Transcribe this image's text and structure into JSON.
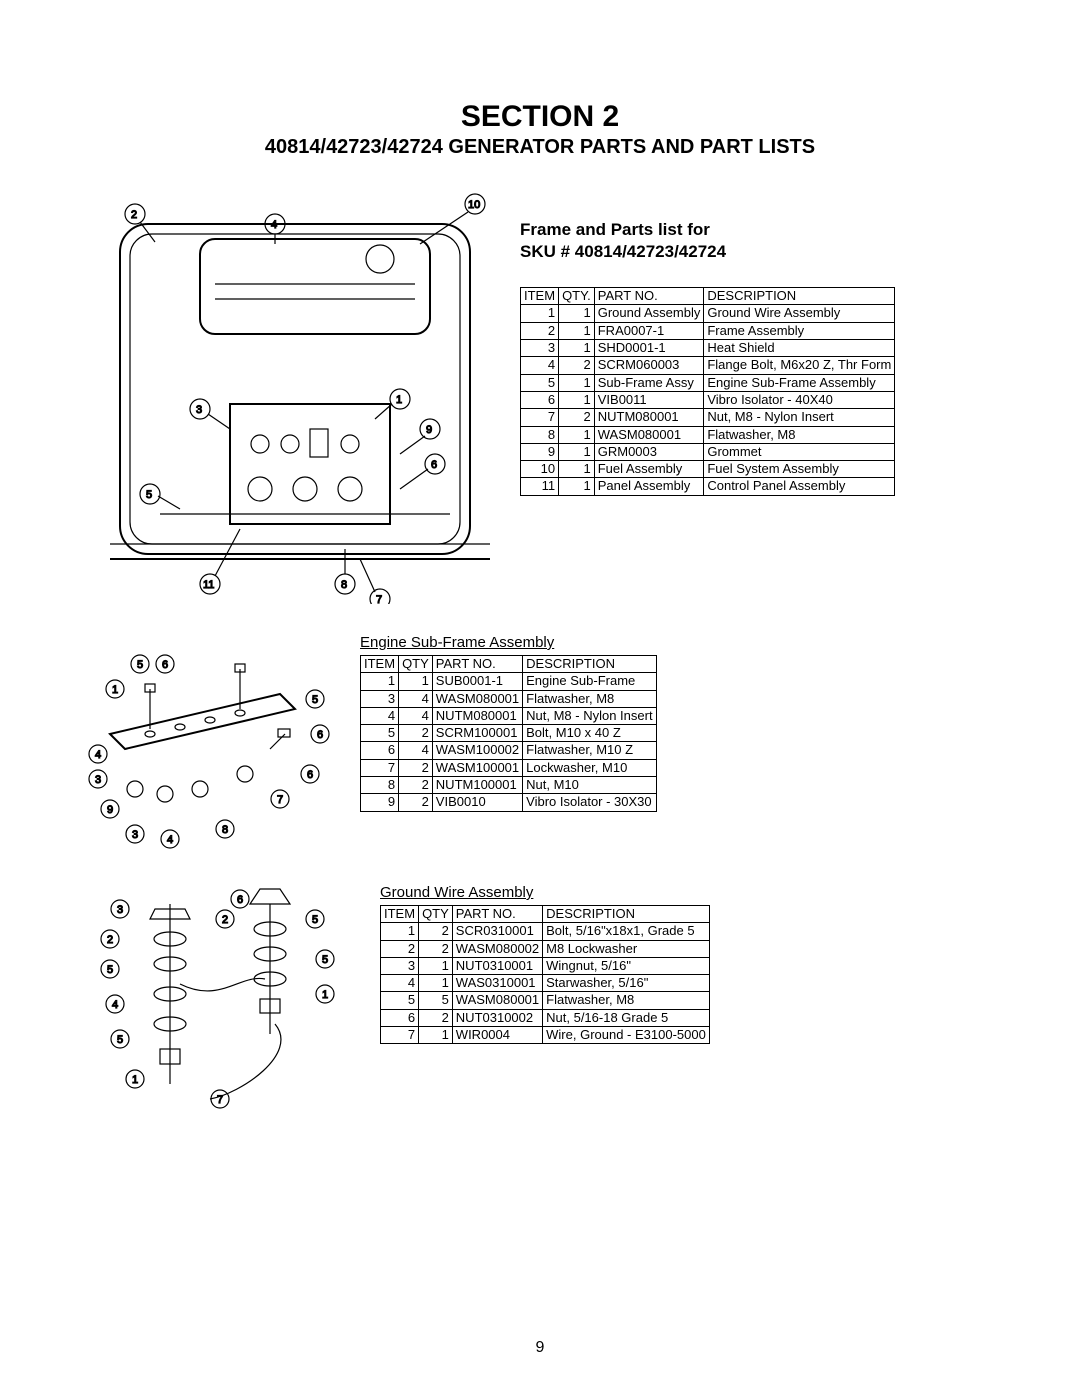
{
  "section_title": "SECTION 2",
  "subtitle": "40814/42723/42724 GENERATOR PARTS AND PART LISTS",
  "frame_heading_l1": "Frame and Parts list for",
  "frame_heading_l2": "SKU # 40814/42723/42724",
  "page_number": "9",
  "table1": {
    "cols": [
      "ITEM",
      "QTY.",
      "PART NO.",
      "DESCRIPTION"
    ],
    "rows": [
      [
        "1",
        "1",
        "Ground Assembly",
        "Ground Wire Assembly"
      ],
      [
        "2",
        "1",
        "FRA0007-1",
        "Frame Assembly"
      ],
      [
        "3",
        "1",
        "SHD0001-1",
        "Heat Shield"
      ],
      [
        "4",
        "2",
        "SCRM060003",
        "Flange Bolt, M6x20  Z, Thr Form"
      ],
      [
        "5",
        "1",
        "Sub-Frame Assy",
        "Engine Sub-Frame Assembly"
      ],
      [
        "6",
        "1",
        "VIB0011",
        "Vibro Isolator - 40X40"
      ],
      [
        "7",
        "2",
        "NUTM080001",
        "Nut, M8 - Nylon Insert"
      ],
      [
        "8",
        "1",
        "WASM080001",
        "Flatwasher, M8"
      ],
      [
        "9",
        "1",
        "GRM0003",
        "Grommet"
      ],
      [
        "10",
        "1",
        "Fuel Assembly",
        "Fuel System Assembly"
      ],
      [
        "11",
        "1",
        "Panel Assembly",
        "Control Panel Assembly"
      ]
    ]
  },
  "table2": {
    "title": "Engine Sub-Frame Assembly",
    "cols": [
      "ITEM",
      "QTY",
      "PART NO.",
      "DESCRIPTION"
    ],
    "rows": [
      [
        "1",
        "1",
        "SUB0001-1",
        "Engine Sub-Frame"
      ],
      [
        "3",
        "4",
        "WASM080001",
        "Flatwasher, M8"
      ],
      [
        "4",
        "4",
        "NUTM080001",
        "Nut, M8 - Nylon Insert"
      ],
      [
        "5",
        "2",
        "SCRM100001",
        "Bolt, M10 x 40 Z"
      ],
      [
        "6",
        "4",
        "WASM100002",
        "Flatwasher, M10 Z"
      ],
      [
        "7",
        "2",
        "WASM100001",
        "Lockwasher, M10"
      ],
      [
        "8",
        "2",
        "NUTM100001",
        "Nut, M10"
      ],
      [
        "9",
        "2",
        "VIB0010",
        "Vibro Isolator - 30X30"
      ]
    ]
  },
  "table3": {
    "title": "Ground Wire Assembly",
    "cols": [
      "ITEM",
      "QTY",
      "PART NO.",
      "DESCRIPTION"
    ],
    "rows": [
      [
        "1",
        "2",
        "SCR0310001",
        "Bolt, 5/16\"x18x1, Grade 5"
      ],
      [
        "2",
        "2",
        "WASM080002",
        "M8 Lockwasher"
      ],
      [
        "3",
        "1",
        "NUT0310001",
        "Wingnut, 5/16\""
      ],
      [
        "4",
        "1",
        "WAS0310001",
        "Starwasher, 5/16\""
      ],
      [
        "5",
        "5",
        "WASM080001",
        "Flatwasher, M8"
      ],
      [
        "6",
        "2",
        "NUT0310002",
        "Nut, 5/16-18 Grade 5"
      ],
      [
        "7",
        "1",
        "WIR0004",
        "Wire, Ground - E3100-5000"
      ]
    ]
  }
}
